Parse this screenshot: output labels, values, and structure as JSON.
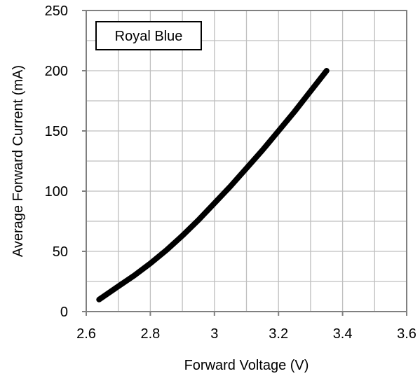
{
  "chart_data": {
    "type": "line",
    "title": "",
    "xlabel": "Forward Voltage (V)",
    "ylabel": "Average Forward Current (mA)",
    "xlim": [
      2.6,
      3.6
    ],
    "ylim": [
      0,
      250
    ],
    "xticks": [
      2.6,
      2.8,
      3.0,
      3.2,
      3.4,
      3.6
    ],
    "xtick_labels": [
      "2.6",
      "2.8",
      "3",
      "3.2",
      "3.4",
      "3.6"
    ],
    "yticks": [
      0,
      50,
      100,
      150,
      200,
      250
    ],
    "ytick_labels": [
      "0",
      "50",
      "100",
      "150",
      "200",
      "250"
    ],
    "x_minor_grid_step": 0.1,
    "y_minor_grid_step": 25,
    "grid": true,
    "legend": {
      "text": "Royal Blue",
      "placement": "top-left"
    },
    "series": [
      {
        "name": "Royal Blue",
        "color": "#000000",
        "x": [
          2.64,
          2.7,
          2.75,
          2.8,
          2.85,
          2.9,
          2.95,
          3.0,
          3.05,
          3.1,
          3.15,
          3.2,
          3.25,
          3.3,
          3.35
        ],
        "y": [
          10,
          21,
          30,
          40,
          51,
          63,
          76,
          90,
          104,
          119,
          134,
          150,
          166,
          183,
          200
        ]
      }
    ]
  },
  "colors": {
    "grid": "#bfbfbf",
    "frame": "#808080",
    "line": "#000000"
  }
}
